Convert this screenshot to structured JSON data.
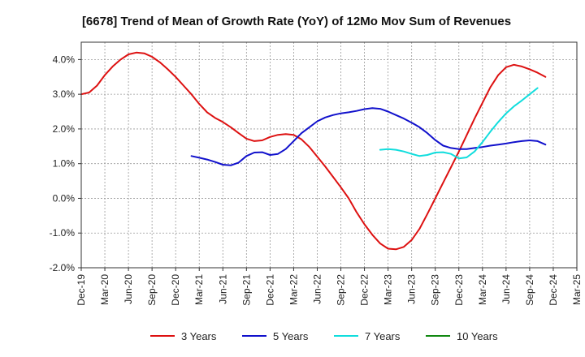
{
  "chart_data": {
    "type": "line",
    "title": "[6678]  Trend of Mean of Growth Rate (YoY) of 12Mo Mov Sum of Revenues",
    "xlabel": "",
    "ylabel": "",
    "ylim": [
      -2.0,
      4.5
    ],
    "yticks": [
      -2.0,
      -1.0,
      0.0,
      1.0,
      2.0,
      3.0,
      4.0
    ],
    "ytick_labels": [
      "-2.0%",
      "-1.0%",
      "0.0%",
      "1.0%",
      "2.0%",
      "3.0%",
      "4.0%"
    ],
    "xticks": [
      "Dec-19",
      "Mar-20",
      "Jun-20",
      "Sep-20",
      "Dec-20",
      "Mar-21",
      "Jun-21",
      "Sep-21",
      "Dec-21",
      "Mar-22",
      "Jun-22",
      "Sep-22",
      "Dec-22",
      "Mar-23",
      "Jun-23",
      "Sep-23",
      "Dec-23",
      "Mar-24",
      "Jun-24",
      "Sep-24",
      "Dec-24",
      "Mar-25"
    ],
    "grid": true,
    "legend_position": "bottom",
    "series": [
      {
        "name": "3 Years",
        "color": "#dd1111",
        "start_index": 0,
        "values": [
          3.0,
          3.05,
          3.25,
          3.55,
          3.8,
          4.0,
          4.15,
          4.2,
          4.18,
          4.08,
          3.92,
          3.72,
          3.5,
          3.25,
          3.0,
          2.72,
          2.48,
          2.32,
          2.2,
          2.05,
          1.88,
          1.72,
          1.65,
          1.67,
          1.77,
          1.83,
          1.85,
          1.83,
          1.7,
          1.48,
          1.2,
          0.92,
          0.62,
          0.32,
          0.0,
          -0.4,
          -0.75,
          -1.05,
          -1.3,
          -1.45,
          -1.47,
          -1.4,
          -1.2,
          -0.88,
          -0.45,
          0.0,
          0.45,
          0.9,
          1.35,
          1.82,
          2.3,
          2.75,
          3.2,
          3.55,
          3.78,
          3.85,
          3.8,
          3.72,
          3.62,
          3.5
        ]
      },
      {
        "name": "5 Years",
        "color": "#1111cc",
        "start_index": 14,
        "values": [
          1.22,
          1.17,
          1.12,
          1.05,
          0.97,
          0.95,
          1.03,
          1.22,
          1.32,
          1.33,
          1.25,
          1.28,
          1.42,
          1.65,
          1.88,
          2.05,
          2.22,
          2.33,
          2.4,
          2.45,
          2.48,
          2.52,
          2.57,
          2.6,
          2.58,
          2.5,
          2.4,
          2.3,
          2.18,
          2.05,
          1.88,
          1.68,
          1.52,
          1.45,
          1.42,
          1.42,
          1.45,
          1.48,
          1.52,
          1.55,
          1.58,
          1.62,
          1.65,
          1.67,
          1.65,
          1.55
        ]
      },
      {
        "name": "7 Years",
        "color": "#11dddd",
        "start_index": 38,
        "values": [
          1.4,
          1.42,
          1.4,
          1.35,
          1.28,
          1.22,
          1.25,
          1.32,
          1.33,
          1.28,
          1.15,
          1.18,
          1.35,
          1.62,
          1.92,
          2.2,
          2.45,
          2.65,
          2.82,
          3.0,
          3.18
        ]
      },
      {
        "name": "10 Years",
        "color": "#118811",
        "start_index": 0,
        "values": []
      }
    ]
  }
}
